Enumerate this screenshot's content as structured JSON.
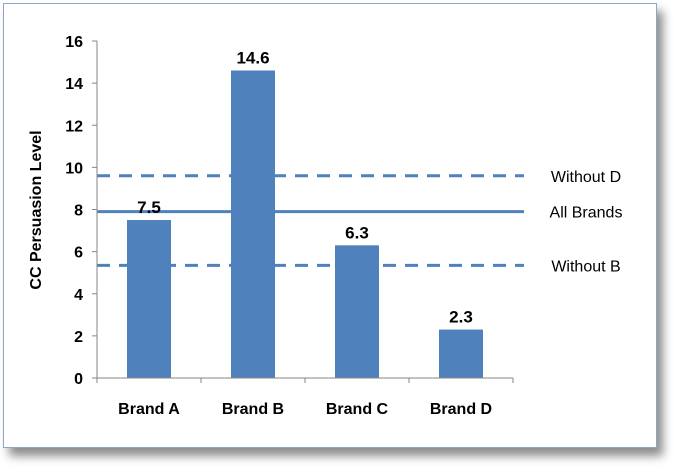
{
  "chart_data": {
    "type": "bar",
    "title": "",
    "xlabel": "",
    "ylabel": "CC Persuasion Level",
    "categories": [
      "Brand A",
      "Brand B",
      "Brand C",
      "Brand D"
    ],
    "values": [
      7.5,
      14.6,
      6.3,
      2.3
    ],
    "value_labels": [
      "7.5",
      "14.6",
      "6.3",
      "2.3"
    ],
    "ylim": [
      0,
      16
    ],
    "yticks": [
      0,
      2,
      4,
      6,
      8,
      10,
      12,
      14,
      16
    ],
    "ytick_labels": [
      "0",
      "2",
      "4",
      "6",
      "8",
      "10",
      "12",
      "14",
      "16"
    ],
    "grid": false,
    "bar_color": "#4f81bd",
    "reference_lines": [
      {
        "label": "Without D",
        "value": 9.6,
        "style": "dashed"
      },
      {
        "label": "All Brands",
        "value": 7.9,
        "style": "solid"
      },
      {
        "label": "Without B",
        "value": 5.35,
        "style": "dashed"
      }
    ],
    "line_color": "#4f81bd"
  }
}
